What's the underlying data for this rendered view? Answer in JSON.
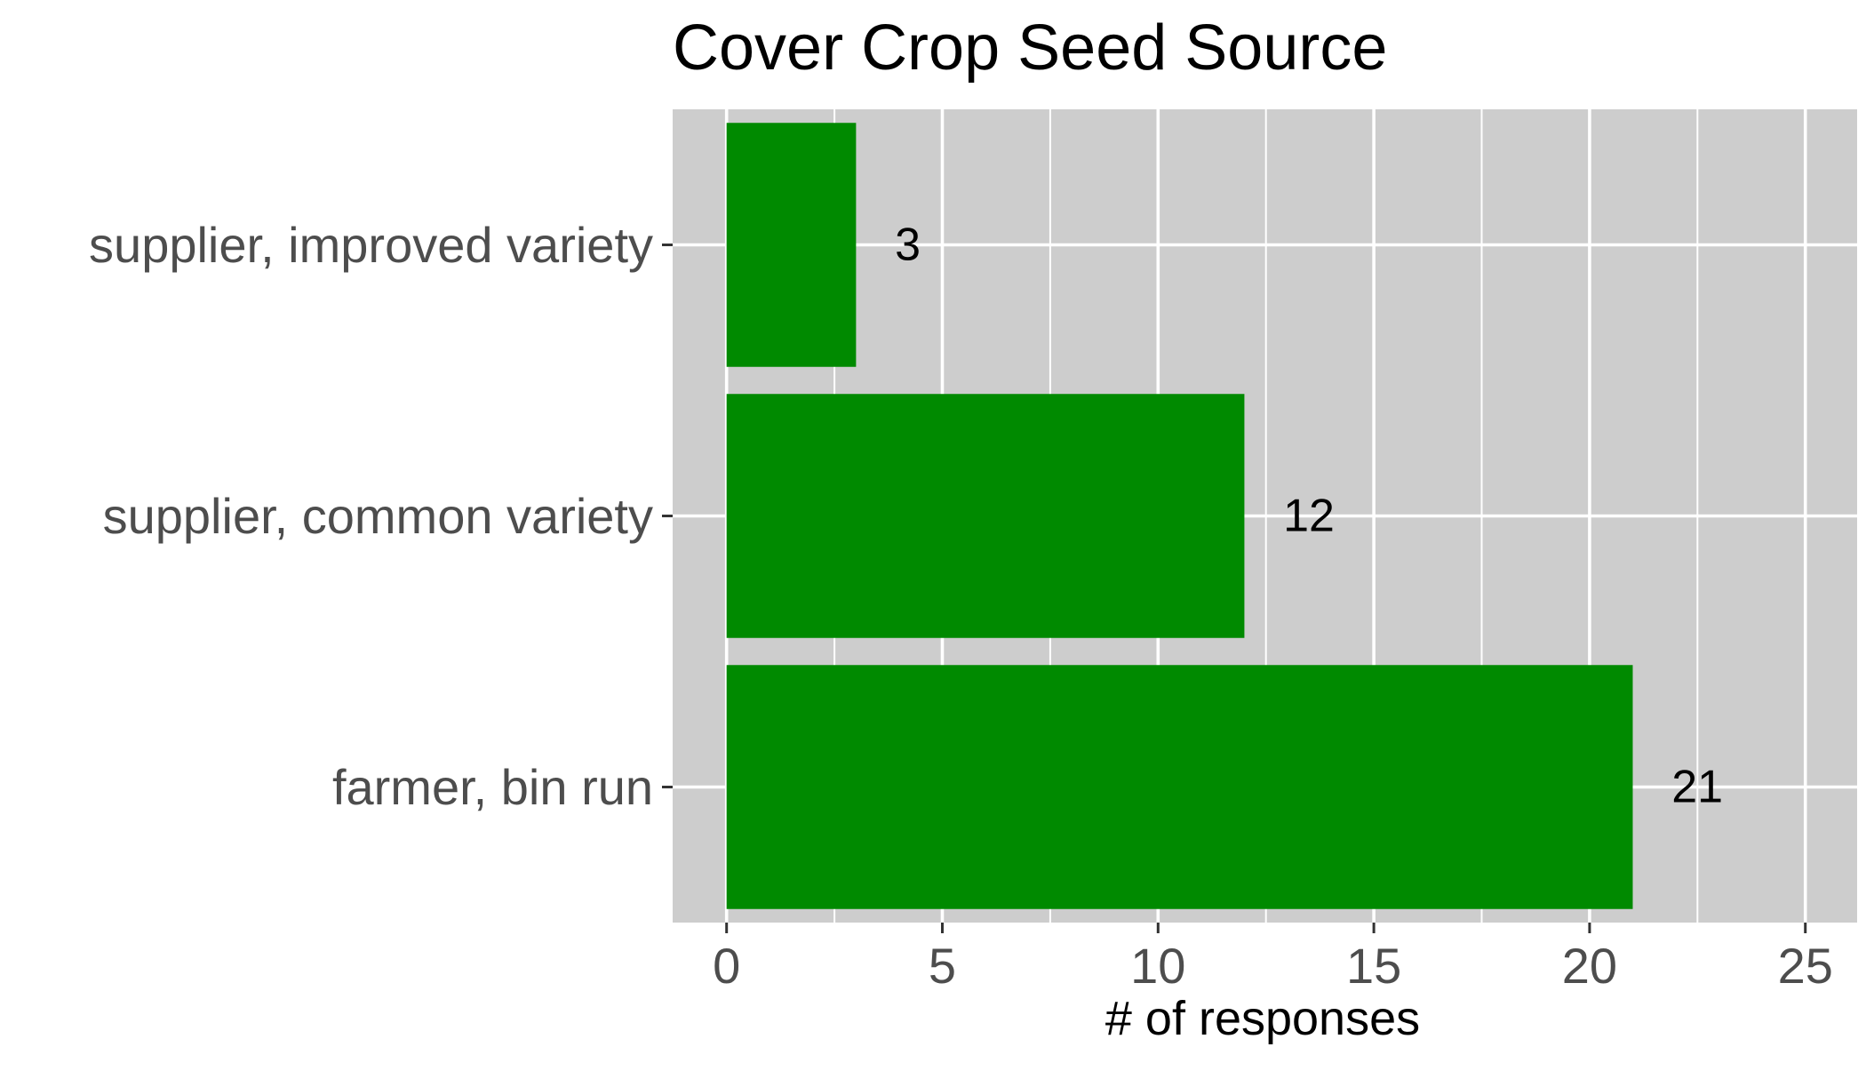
{
  "chart_data": {
    "type": "bar",
    "orientation": "horizontal",
    "title": "Cover Crop Seed Source",
    "xlabel": "# of responses",
    "ylabel": "",
    "categories": [
      "supplier, improved variety",
      "supplier, common variety",
      "farmer, bin run"
    ],
    "values": [
      3,
      12,
      21
    ],
    "data_labels": [
      "3",
      "12",
      "21"
    ],
    "xlim": [
      -1.25,
      26.2
    ],
    "x_ticks": [
      0,
      5,
      10,
      15,
      20,
      25
    ],
    "x_tick_labels": [
      "0",
      "5",
      "10",
      "15",
      "20",
      "25"
    ],
    "grid": true,
    "legend": "none",
    "colors": {
      "bar": "#008A00",
      "panel": "#CDCDCD",
      "grid": "#FFFFFF",
      "tick_label": "#4D4D4D",
      "text": "#000000"
    }
  }
}
